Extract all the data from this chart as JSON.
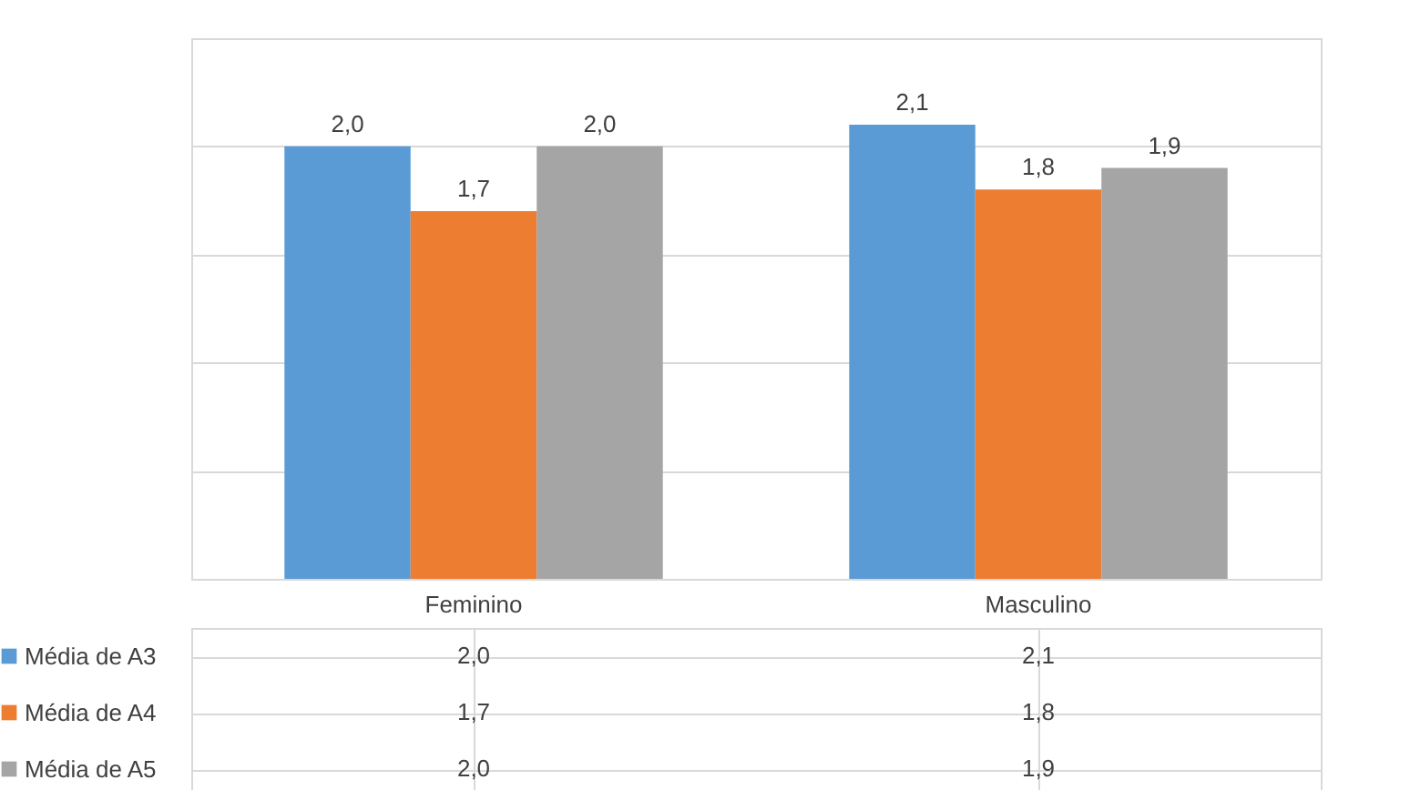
{
  "chart_data": {
    "type": "bar",
    "categories": [
      "Feminino",
      "Masculino"
    ],
    "series": [
      {
        "name": "Média de A3",
        "color": "#5b9bd5",
        "values": [
          2.0,
          2.1
        ],
        "value_labels": [
          "2,0",
          "2,1"
        ]
      },
      {
        "name": "Média de A4",
        "color": "#ed7d31",
        "values": [
          1.7,
          1.8
        ],
        "value_labels": [
          "1,7",
          "1,8"
        ]
      },
      {
        "name": "Média de A5",
        "color": "#a5a5a5",
        "values": [
          2.0,
          1.9
        ],
        "value_labels": [
          "2,0",
          "1,9"
        ]
      }
    ],
    "ylim": [
      0,
      2.5
    ],
    "yticks": [
      {
        "value": 0,
        "label": null
      },
      {
        "value": 0.5,
        "label": null
      },
      {
        "value": 1,
        "label": null
      },
      {
        "value": 1.5,
        "label": null
      },
      {
        "value": 2,
        "label": null
      },
      {
        "value": 2.5,
        "label": null
      }
    ],
    "tick_labels": "x",
    "grid": "y",
    "legend": "bottom"
  }
}
